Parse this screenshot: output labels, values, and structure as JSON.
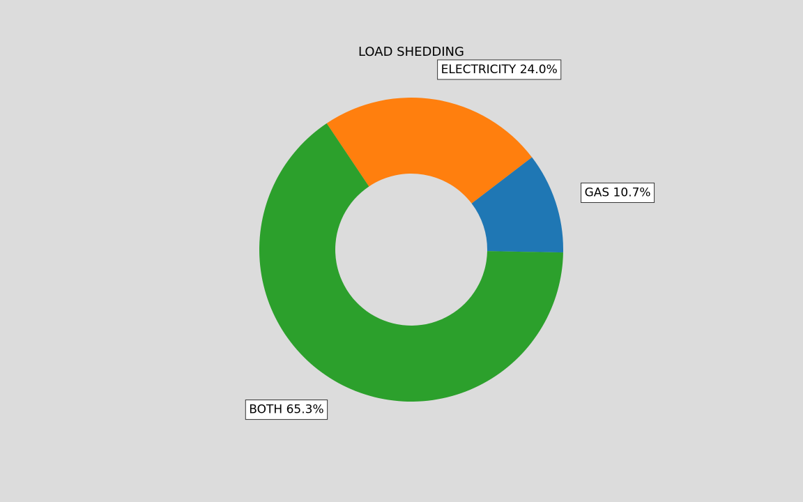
{
  "chart_data": {
    "type": "pie",
    "donut": true,
    "title": "LOAD SHEDDING",
    "slices": [
      {
        "name": "GAS",
        "value": 10.7,
        "label": "GAS  10.7%",
        "color": "#1f77b4"
      },
      {
        "name": "ELECTRICITY",
        "value": 24.0,
        "label": "ELECTRICITY  24.0%",
        "color": "#ff7f0e"
      },
      {
        "name": "BOTH",
        "value": 65.3,
        "label": "BOTH  65.3%",
        "color": "#2ca02c"
      }
    ],
    "background": "#dcdcdc"
  }
}
